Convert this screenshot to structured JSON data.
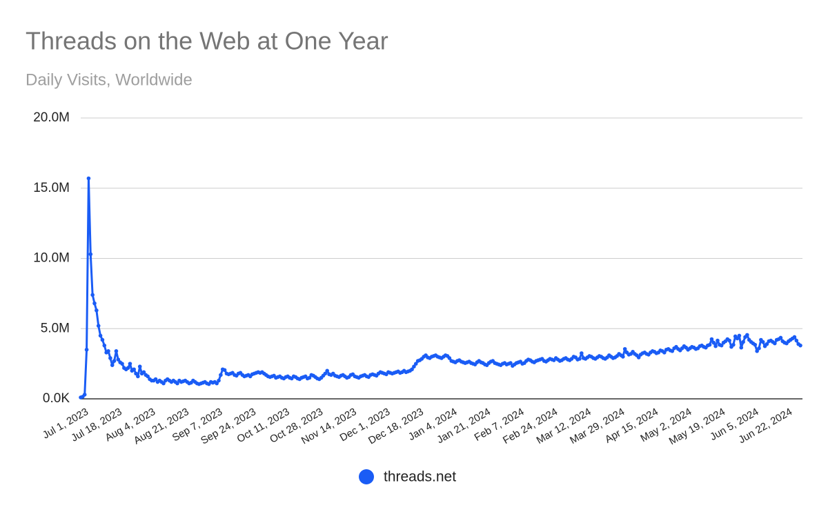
{
  "chart_data": {
    "type": "line",
    "title": "Threads on the Web at One Year",
    "subtitle": "Daily Visits, Worldwide",
    "categories": [
      "Jul 1, 2023",
      null,
      null,
      null,
      null,
      null,
      null,
      null,
      null,
      null,
      null,
      null,
      null,
      null,
      null,
      null,
      null,
      "Jul 18, 2023",
      null,
      null,
      null,
      null,
      null,
      null,
      null,
      null,
      null,
      null,
      null,
      null,
      null,
      null,
      null,
      null,
      "Aug 4, 2023",
      null,
      null,
      null,
      null,
      null,
      null,
      null,
      null,
      null,
      null,
      null,
      null,
      null,
      null,
      null,
      null,
      "Aug 21, 2023",
      null,
      null,
      null,
      null,
      null,
      null,
      null,
      null,
      null,
      null,
      null,
      null,
      null,
      null,
      null,
      null,
      "Sep 7, 2023",
      null,
      null,
      null,
      null,
      null,
      null,
      null,
      null,
      null,
      null,
      null,
      null,
      null,
      null,
      null,
      null,
      "Sep 24, 2023",
      null,
      null,
      null,
      null,
      null,
      null,
      null,
      null,
      null,
      null,
      null,
      null,
      null,
      null,
      null,
      null,
      "Oct 11, 2023",
      null,
      null,
      null,
      null,
      null,
      null,
      null,
      null,
      null,
      null,
      null,
      null,
      null,
      null,
      null,
      null,
      "Oct 28, 2023",
      null,
      null,
      null,
      null,
      null,
      null,
      null,
      null,
      null,
      null,
      null,
      null,
      null,
      null,
      null,
      null,
      "Nov 14, 2023",
      null,
      null,
      null,
      null,
      null,
      null,
      null,
      null,
      null,
      null,
      null,
      null,
      null,
      null,
      null,
      null,
      "Dec 1, 2023",
      null,
      null,
      null,
      null,
      null,
      null,
      null,
      null,
      null,
      null,
      null,
      null,
      null,
      null,
      null,
      null,
      "Dec 18, 2023",
      null,
      null,
      null,
      null,
      null,
      null,
      null,
      null,
      null,
      null,
      null,
      null,
      null,
      null,
      null,
      null,
      "Jan 4, 2024",
      null,
      null,
      null,
      null,
      null,
      null,
      null,
      null,
      null,
      null,
      null,
      null,
      null,
      null,
      null,
      null,
      "Jan 21, 2024",
      null,
      null,
      null,
      null,
      null,
      null,
      null,
      null,
      null,
      null,
      null,
      null,
      null,
      null,
      null,
      null,
      "Feb 7, 2024",
      null,
      null,
      null,
      null,
      null,
      null,
      null,
      null,
      null,
      null,
      null,
      null,
      null,
      null,
      null,
      null,
      "Feb 24, 2024",
      null,
      null,
      null,
      null,
      null,
      null,
      null,
      null,
      null,
      null,
      null,
      null,
      null,
      null,
      null,
      null,
      "Mar 12, 2024",
      null,
      null,
      null,
      null,
      null,
      null,
      null,
      null,
      null,
      null,
      null,
      null,
      null,
      null,
      null,
      null,
      "Mar 29, 2024",
      null,
      null,
      null,
      null,
      null,
      null,
      null,
      null,
      null,
      null,
      null,
      null,
      null,
      null,
      null,
      null,
      "Apr 15, 2024",
      null,
      null,
      null,
      null,
      null,
      null,
      null,
      null,
      null,
      null,
      null,
      null,
      null,
      null,
      null,
      null,
      "May 2, 2024",
      null,
      null,
      null,
      null,
      null,
      null,
      null,
      null,
      null,
      null,
      null,
      null,
      null,
      null,
      null,
      null,
      "May 19, 2024",
      null,
      null,
      null,
      null,
      null,
      null,
      null,
      null,
      null,
      null,
      null,
      null,
      null,
      null,
      null,
      null,
      "Jun 5, 2024",
      null,
      null,
      null,
      null,
      null,
      null,
      null,
      null,
      null,
      null,
      null,
      null,
      null,
      null,
      null,
      null,
      "Jun 22, 2024",
      null,
      null,
      null,
      null,
      null,
      null,
      null,
      null
    ],
    "series": [
      {
        "name": "threads.net",
        "color": "#1a5cf5",
        "values": [
          100000,
          150000,
          300000,
          3500000,
          15700000,
          10300000,
          7400000,
          6800000,
          6300000,
          5200000,
          4500000,
          4200000,
          3800000,
          3300000,
          3400000,
          2900000,
          2400000,
          2700000,
          3400000,
          2800000,
          2600000,
          2500000,
          2200000,
          2100000,
          2200000,
          2500000,
          2000000,
          2100000,
          1800000,
          1600000,
          2300000,
          1800000,
          1900000,
          1700000,
          1600000,
          1400000,
          1300000,
          1300000,
          1400000,
          1200000,
          1300000,
          1200000,
          1100000,
          1300000,
          1400000,
          1300000,
          1200000,
          1300000,
          1200000,
          1100000,
          1300000,
          1200000,
          1250000,
          1300000,
          1200000,
          1100000,
          1150000,
          1300000,
          1200000,
          1100000,
          1050000,
          1100000,
          1150000,
          1200000,
          1100000,
          1050000,
          1200000,
          1150000,
          1200000,
          1100000,
          1300000,
          1700000,
          2100000,
          2050000,
          1800000,
          1750000,
          1800000,
          1850000,
          1700000,
          1650000,
          1800000,
          1850000,
          1700000,
          1600000,
          1650000,
          1700000,
          1600000,
          1750000,
          1800000,
          1850000,
          1900000,
          1850000,
          1900000,
          1800000,
          1700000,
          1600000,
          1550000,
          1600000,
          1650000,
          1500000,
          1550000,
          1600000,
          1500000,
          1450000,
          1550000,
          1600000,
          1500000,
          1450000,
          1600000,
          1550000,
          1450000,
          1400000,
          1500000,
          1550000,
          1600000,
          1450000,
          1500000,
          1700000,
          1650000,
          1550000,
          1450000,
          1400000,
          1500000,
          1650000,
          1800000,
          2000000,
          1750000,
          1700000,
          1800000,
          1650000,
          1600000,
          1550000,
          1650000,
          1700000,
          1600000,
          1500000,
          1550000,
          1700000,
          1750000,
          1600000,
          1550000,
          1500000,
          1600000,
          1650000,
          1700000,
          1600000,
          1550000,
          1700000,
          1750000,
          1700000,
          1650000,
          1800000,
          1900000,
          1850000,
          1800000,
          1750000,
          1900000,
          1850000,
          1800000,
          1850000,
          1900000,
          1950000,
          1850000,
          1900000,
          2000000,
          1900000,
          1950000,
          2000000,
          2100000,
          2300000,
          2500000,
          2700000,
          2750000,
          2850000,
          3000000,
          3100000,
          2950000,
          2900000,
          3000000,
          3050000,
          3100000,
          3000000,
          2950000,
          2900000,
          3000000,
          3100000,
          3050000,
          2900000,
          2700000,
          2650000,
          2600000,
          2700000,
          2750000,
          2650000,
          2600000,
          2550000,
          2600000,
          2650000,
          2550000,
          2500000,
          2450000,
          2600000,
          2700000,
          2600000,
          2550000,
          2450000,
          2400000,
          2550000,
          2650000,
          2700000,
          2550000,
          2500000,
          2450000,
          2400000,
          2500000,
          2550000,
          2450000,
          2500000,
          2550000,
          2350000,
          2450000,
          2550000,
          2600000,
          2650000,
          2500000,
          2550000,
          2700000,
          2800000,
          2750000,
          2650000,
          2600000,
          2700000,
          2750000,
          2800000,
          2850000,
          2700000,
          2650000,
          2750000,
          2850000,
          2800000,
          2750000,
          2900000,
          2800000,
          2700000,
          2750000,
          2850000,
          2900000,
          2800000,
          2750000,
          2850000,
          3000000,
          2950000,
          2800000,
          2850000,
          3250000,
          2900000,
          2850000,
          2950000,
          3050000,
          3000000,
          2900000,
          2850000,
          2950000,
          3050000,
          3000000,
          2900000,
          2850000,
          2950000,
          3100000,
          3000000,
          2900000,
          2950000,
          3050000,
          3200000,
          3100000,
          3000000,
          3550000,
          3300000,
          3150000,
          3200000,
          3350000,
          3200000,
          3100000,
          2950000,
          3150000,
          3250000,
          3300000,
          3200000,
          3150000,
          3300000,
          3400000,
          3350000,
          3250000,
          3300000,
          3450000,
          3400000,
          3300000,
          3500000,
          3550000,
          3450000,
          3400000,
          3600000,
          3700000,
          3550000,
          3450000,
          3600000,
          3750000,
          3650000,
          3500000,
          3600000,
          3700000,
          3650000,
          3550000,
          3600000,
          3750000,
          3800000,
          3700000,
          3650000,
          3800000,
          3850000,
          4250000,
          4000000,
          3750000,
          4150000,
          3850000,
          3800000,
          4000000,
          4100000,
          4250000,
          4150000,
          3700000,
          3850000,
          4450000,
          4300000,
          4500000,
          3650000,
          4050000,
          4400000,
          4550000,
          4200000,
          4050000,
          3950000,
          3850000,
          3400000,
          3600000,
          4200000,
          4050000,
          3750000,
          3900000,
          4100000,
          4150000,
          4050000,
          3950000,
          4200000,
          4250000,
          4350000,
          4100000,
          4000000,
          3950000,
          4100000,
          4200000,
          4300000,
          4400000,
          4150000,
          3900000,
          3800000
        ]
      }
    ],
    "ylim": [
      0,
      20000000
    ],
    "yticks": [
      {
        "value": 0,
        "label": "0.0K"
      },
      {
        "value": 5000000,
        "label": "5.0M"
      },
      {
        "value": 10000000,
        "label": "10.0M"
      },
      {
        "value": 15000000,
        "label": "15.0M"
      },
      {
        "value": 20000000,
        "label": "20.0M"
      }
    ],
    "grid": true,
    "legend": "bottom"
  }
}
